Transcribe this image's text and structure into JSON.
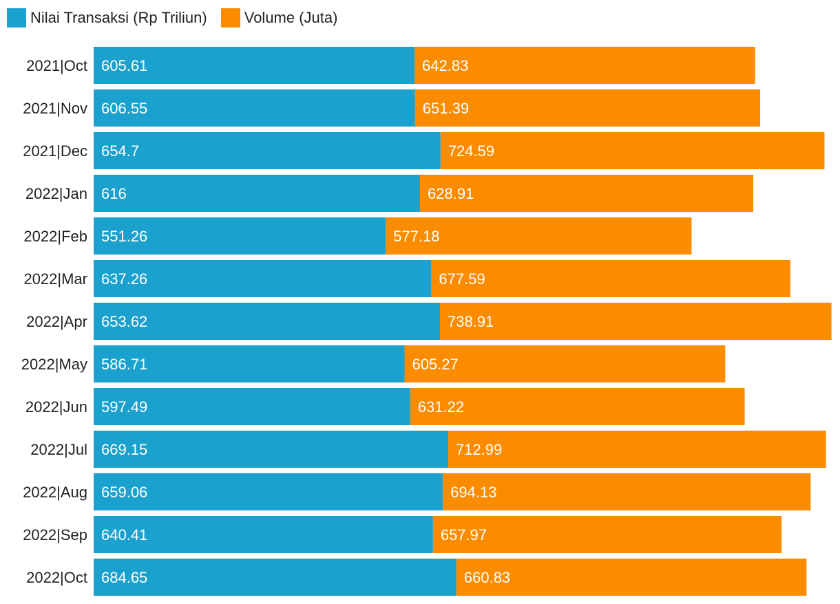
{
  "chart_data": {
    "type": "bar",
    "orientation": "horizontal",
    "stacked": true,
    "legend_position": "top-left",
    "grid": false,
    "categories": [
      "2021|Oct",
      "2021|Nov",
      "2021|Dec",
      "2022|Jan",
      "2022|Feb",
      "2022|Mar",
      "2022|Apr",
      "2022|May",
      "2022|Jun",
      "2022|Jul",
      "2022|Aug",
      "2022|Sep",
      "2022|Oct"
    ],
    "series": [
      {
        "name": "Nilai Transaksi (Rp Triliun)",
        "color": "#1ba1ce",
        "values": [
          605.61,
          606.55,
          654.7,
          616,
          551.26,
          637.26,
          653.62,
          586.71,
          597.49,
          669.15,
          659.06,
          640.41,
          684.65
        ]
      },
      {
        "name": "Volume (Juta)",
        "color": "#fb8c00",
        "values": [
          642.83,
          651.39,
          724.59,
          628.91,
          577.18,
          677.59,
          738.91,
          605.27,
          631.22,
          712.99,
          694.13,
          657.97,
          660.83
        ]
      }
    ],
    "xlim": [
      0,
      1393
    ]
  }
}
